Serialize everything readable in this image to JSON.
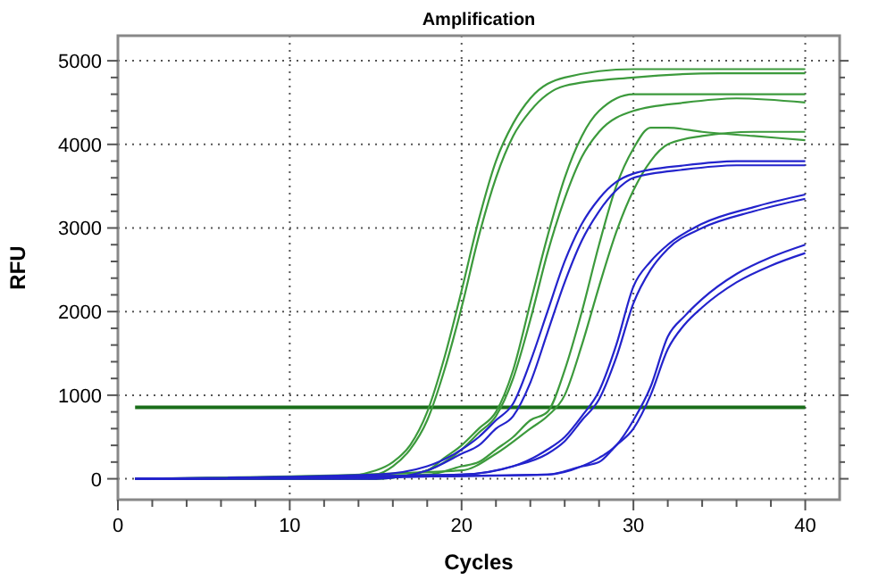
{
  "chart_data": {
    "type": "line",
    "title": "Amplification",
    "xlabel": "Cycles",
    "ylabel": "RFU",
    "xlim": [
      0,
      42
    ],
    "ylim": [
      -250,
      5300
    ],
    "xticks": [
      0,
      {
        "value": 2,
        "label": null
      },
      {
        "value": 4,
        "label": null
      },
      {
        "value": 6,
        "label": null
      },
      {
        "value": 8,
        "label": null
      },
      10,
      {
        "value": 12,
        "label": null
      },
      {
        "value": 14,
        "label": null
      },
      {
        "value": 16,
        "label": null
      },
      {
        "value": 18,
        "label": null
      },
      20,
      {
        "value": 22,
        "label": null
      },
      {
        "value": 24,
        "label": null
      },
      {
        "value": 26,
        "label": null
      },
      {
        "value": 28,
        "label": null
      },
      30,
      {
        "value": 32,
        "label": null
      },
      {
        "value": 34,
        "label": null
      },
      {
        "value": 36,
        "label": null
      },
      {
        "value": 38,
        "label": null
      },
      40
    ],
    "yticks": [
      0,
      {
        "value": 200,
        "label": null
      },
      {
        "value": 400,
        "label": null
      },
      {
        "value": 600,
        "label": null
      },
      {
        "value": 800,
        "label": null
      },
      1000,
      {
        "value": 1200,
        "label": null
      },
      {
        "value": 1400,
        "label": null
      },
      {
        "value": 1600,
        "label": null
      },
      {
        "value": 1800,
        "label": null
      },
      2000,
      {
        "value": 2200,
        "label": null
      },
      {
        "value": 2400,
        "label": null
      },
      {
        "value": 2600,
        "label": null
      },
      {
        "value": 2800,
        "label": null
      },
      3000,
      {
        "value": 3200,
        "label": null
      },
      {
        "value": 3400,
        "label": null
      },
      {
        "value": 3600,
        "label": null
      },
      {
        "value": 3800,
        "label": null
      },
      4000,
      {
        "value": 4200,
        "label": null
      },
      {
        "value": 4400,
        "label": null
      },
      {
        "value": 4600,
        "label": null
      },
      {
        "value": 4800,
        "label": null
      },
      5000
    ],
    "grid": true,
    "line_style": "solid",
    "ref_lines": [
      {
        "axis": "y",
        "value": 855,
        "color": "#1a6e1a"
      }
    ],
    "series": [
      {
        "color": "#3c9a3c",
        "x": [
          1,
          12,
          15,
          16,
          17,
          18,
          19,
          20,
          21,
          22,
          23,
          24,
          26,
          30,
          35,
          40
        ],
        "values": [
          0,
          0,
          100,
          200,
          400,
          800,
          1450,
          2250,
          3100,
          3800,
          4250,
          4550,
          4800,
          4900,
          4900,
          4900
        ]
      },
      {
        "color": "#3c9a3c",
        "x": [
          1,
          12,
          15,
          16,
          17,
          18,
          19,
          20,
          21,
          22,
          23,
          24,
          26,
          30,
          35,
          40
        ],
        "values": [
          0,
          0,
          50,
          150,
          350,
          700,
          1300,
          2050,
          2900,
          3600,
          4100,
          4400,
          4700,
          4800,
          4850,
          4850
        ]
      },
      {
        "color": "#3c9a3c",
        "x": [
          1,
          15,
          18,
          19,
          20,
          21,
          22,
          23,
          24,
          25,
          26,
          27,
          28,
          30,
          33,
          36,
          40
        ],
        "values": [
          0,
          0,
          100,
          250,
          400,
          600,
          800,
          1300,
          2100,
          2900,
          3600,
          4100,
          4400,
          4600,
          4600,
          4600,
          4600
        ]
      },
      {
        "color": "#3c9a3c",
        "x": [
          1,
          15,
          18,
          19,
          20,
          21,
          22,
          23,
          24,
          25,
          26,
          27,
          28,
          30,
          33,
          36,
          40
        ],
        "values": [
          0,
          0,
          100,
          200,
          350,
          550,
          750,
          1200,
          1900,
          2700,
          3350,
          3850,
          4150,
          4400,
          4500,
          4550,
          4500
        ]
      },
      {
        "color": "#3c9a3c",
        "x": [
          1,
          18,
          20,
          21,
          22,
          23,
          24,
          25,
          26,
          27,
          28,
          29,
          30,
          31,
          32,
          34,
          37,
          40
        ],
        "values": [
          0,
          50,
          150,
          200,
          350,
          500,
          700,
          800,
          1300,
          2000,
          2800,
          3500,
          3950,
          4200,
          4200,
          4150,
          4100,
          4050
        ]
      },
      {
        "color": "#3c9a3c",
        "x": [
          1,
          20,
          22,
          24,
          25,
          26,
          27,
          28,
          29,
          30,
          31,
          32,
          34,
          37,
          40
        ],
        "values": [
          0,
          100,
          300,
          600,
          750,
          1000,
          1600,
          2300,
          2950,
          3450,
          3800,
          4000,
          4100,
          4150,
          4150
        ]
      },
      {
        "color": "#2323cc",
        "x": [
          1,
          15,
          18,
          20,
          21,
          22,
          23,
          24,
          25,
          26,
          27,
          28,
          29,
          30,
          33,
          36,
          40
        ],
        "values": [
          0,
          50,
          150,
          350,
          500,
          700,
          900,
          1400,
          2000,
          2600,
          3050,
          3350,
          3550,
          3650,
          3750,
          3800,
          3800
        ]
      },
      {
        "color": "#2323cc",
        "x": [
          1,
          15,
          18,
          20,
          21,
          22,
          23,
          24,
          25,
          26,
          27,
          28,
          29,
          30,
          33,
          36,
          40
        ],
        "values": [
          0,
          0,
          100,
          300,
          400,
          600,
          750,
          1150,
          1750,
          2350,
          2850,
          3200,
          3450,
          3600,
          3700,
          3750,
          3750
        ]
      },
      {
        "color": "#2323cc",
        "x": [
          1,
          20,
          23,
          25,
          26,
          27,
          28,
          29,
          30,
          31,
          32,
          34,
          37,
          40
        ],
        "values": [
          0,
          50,
          150,
          350,
          500,
          750,
          1050,
          1600,
          2300,
          2600,
          2800,
          3050,
          3250,
          3400
        ]
      },
      {
        "color": "#2323cc",
        "x": [
          1,
          20,
          23,
          25,
          26,
          27,
          28,
          29,
          30,
          31,
          32,
          34,
          37,
          40
        ],
        "values": [
          0,
          50,
          150,
          300,
          450,
          700,
          950,
          1450,
          2100,
          2500,
          2750,
          3000,
          3200,
          3350
        ]
      },
      {
        "color": "#2323cc",
        "x": [
          1,
          25,
          27,
          28,
          29,
          30,
          31,
          32,
          33,
          34,
          36,
          38,
          40
        ],
        "values": [
          0,
          50,
          150,
          250,
          400,
          700,
          1100,
          1700,
          1950,
          2150,
          2450,
          2650,
          2800
        ]
      },
      {
        "color": "#2323cc",
        "x": [
          1,
          25,
          27,
          28,
          29,
          30,
          31,
          32,
          33,
          34,
          36,
          38,
          40
        ],
        "values": [
          0,
          50,
          150,
          200,
          400,
          600,
          1000,
          1550,
          1850,
          2050,
          2350,
          2550,
          2700
        ]
      }
    ]
  }
}
